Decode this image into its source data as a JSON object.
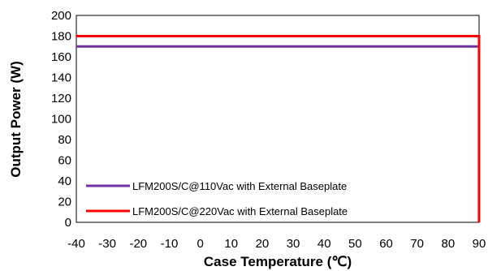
{
  "chart_data": {
    "type": "line",
    "title": "",
    "xlabel": "Case Temperature (℃)",
    "ylabel": "Output Power (W)",
    "xlim": [
      -40,
      90
    ],
    "ylim": [
      0,
      200
    ],
    "x_ticks": [
      -40,
      -30,
      -20,
      -10,
      0,
      10,
      20,
      30,
      40,
      50,
      60,
      70,
      80,
      90
    ],
    "y_ticks": [
      0,
      20,
      40,
      60,
      80,
      100,
      120,
      140,
      160,
      180,
      200
    ],
    "grid": false,
    "legend_position": "bottom-left",
    "series": [
      {
        "name": "LFM200S/C@110Vac with External Baseplate",
        "color": "#7030A0",
        "points": [
          [
            -40,
            170
          ],
          [
            90,
            170
          ]
        ]
      },
      {
        "name": "LFM200S/C@220Vac with External Baseplate",
        "color": "#FF0000",
        "points": [
          [
            -40,
            180
          ],
          [
            90,
            180
          ],
          [
            90,
            0
          ]
        ]
      }
    ]
  }
}
